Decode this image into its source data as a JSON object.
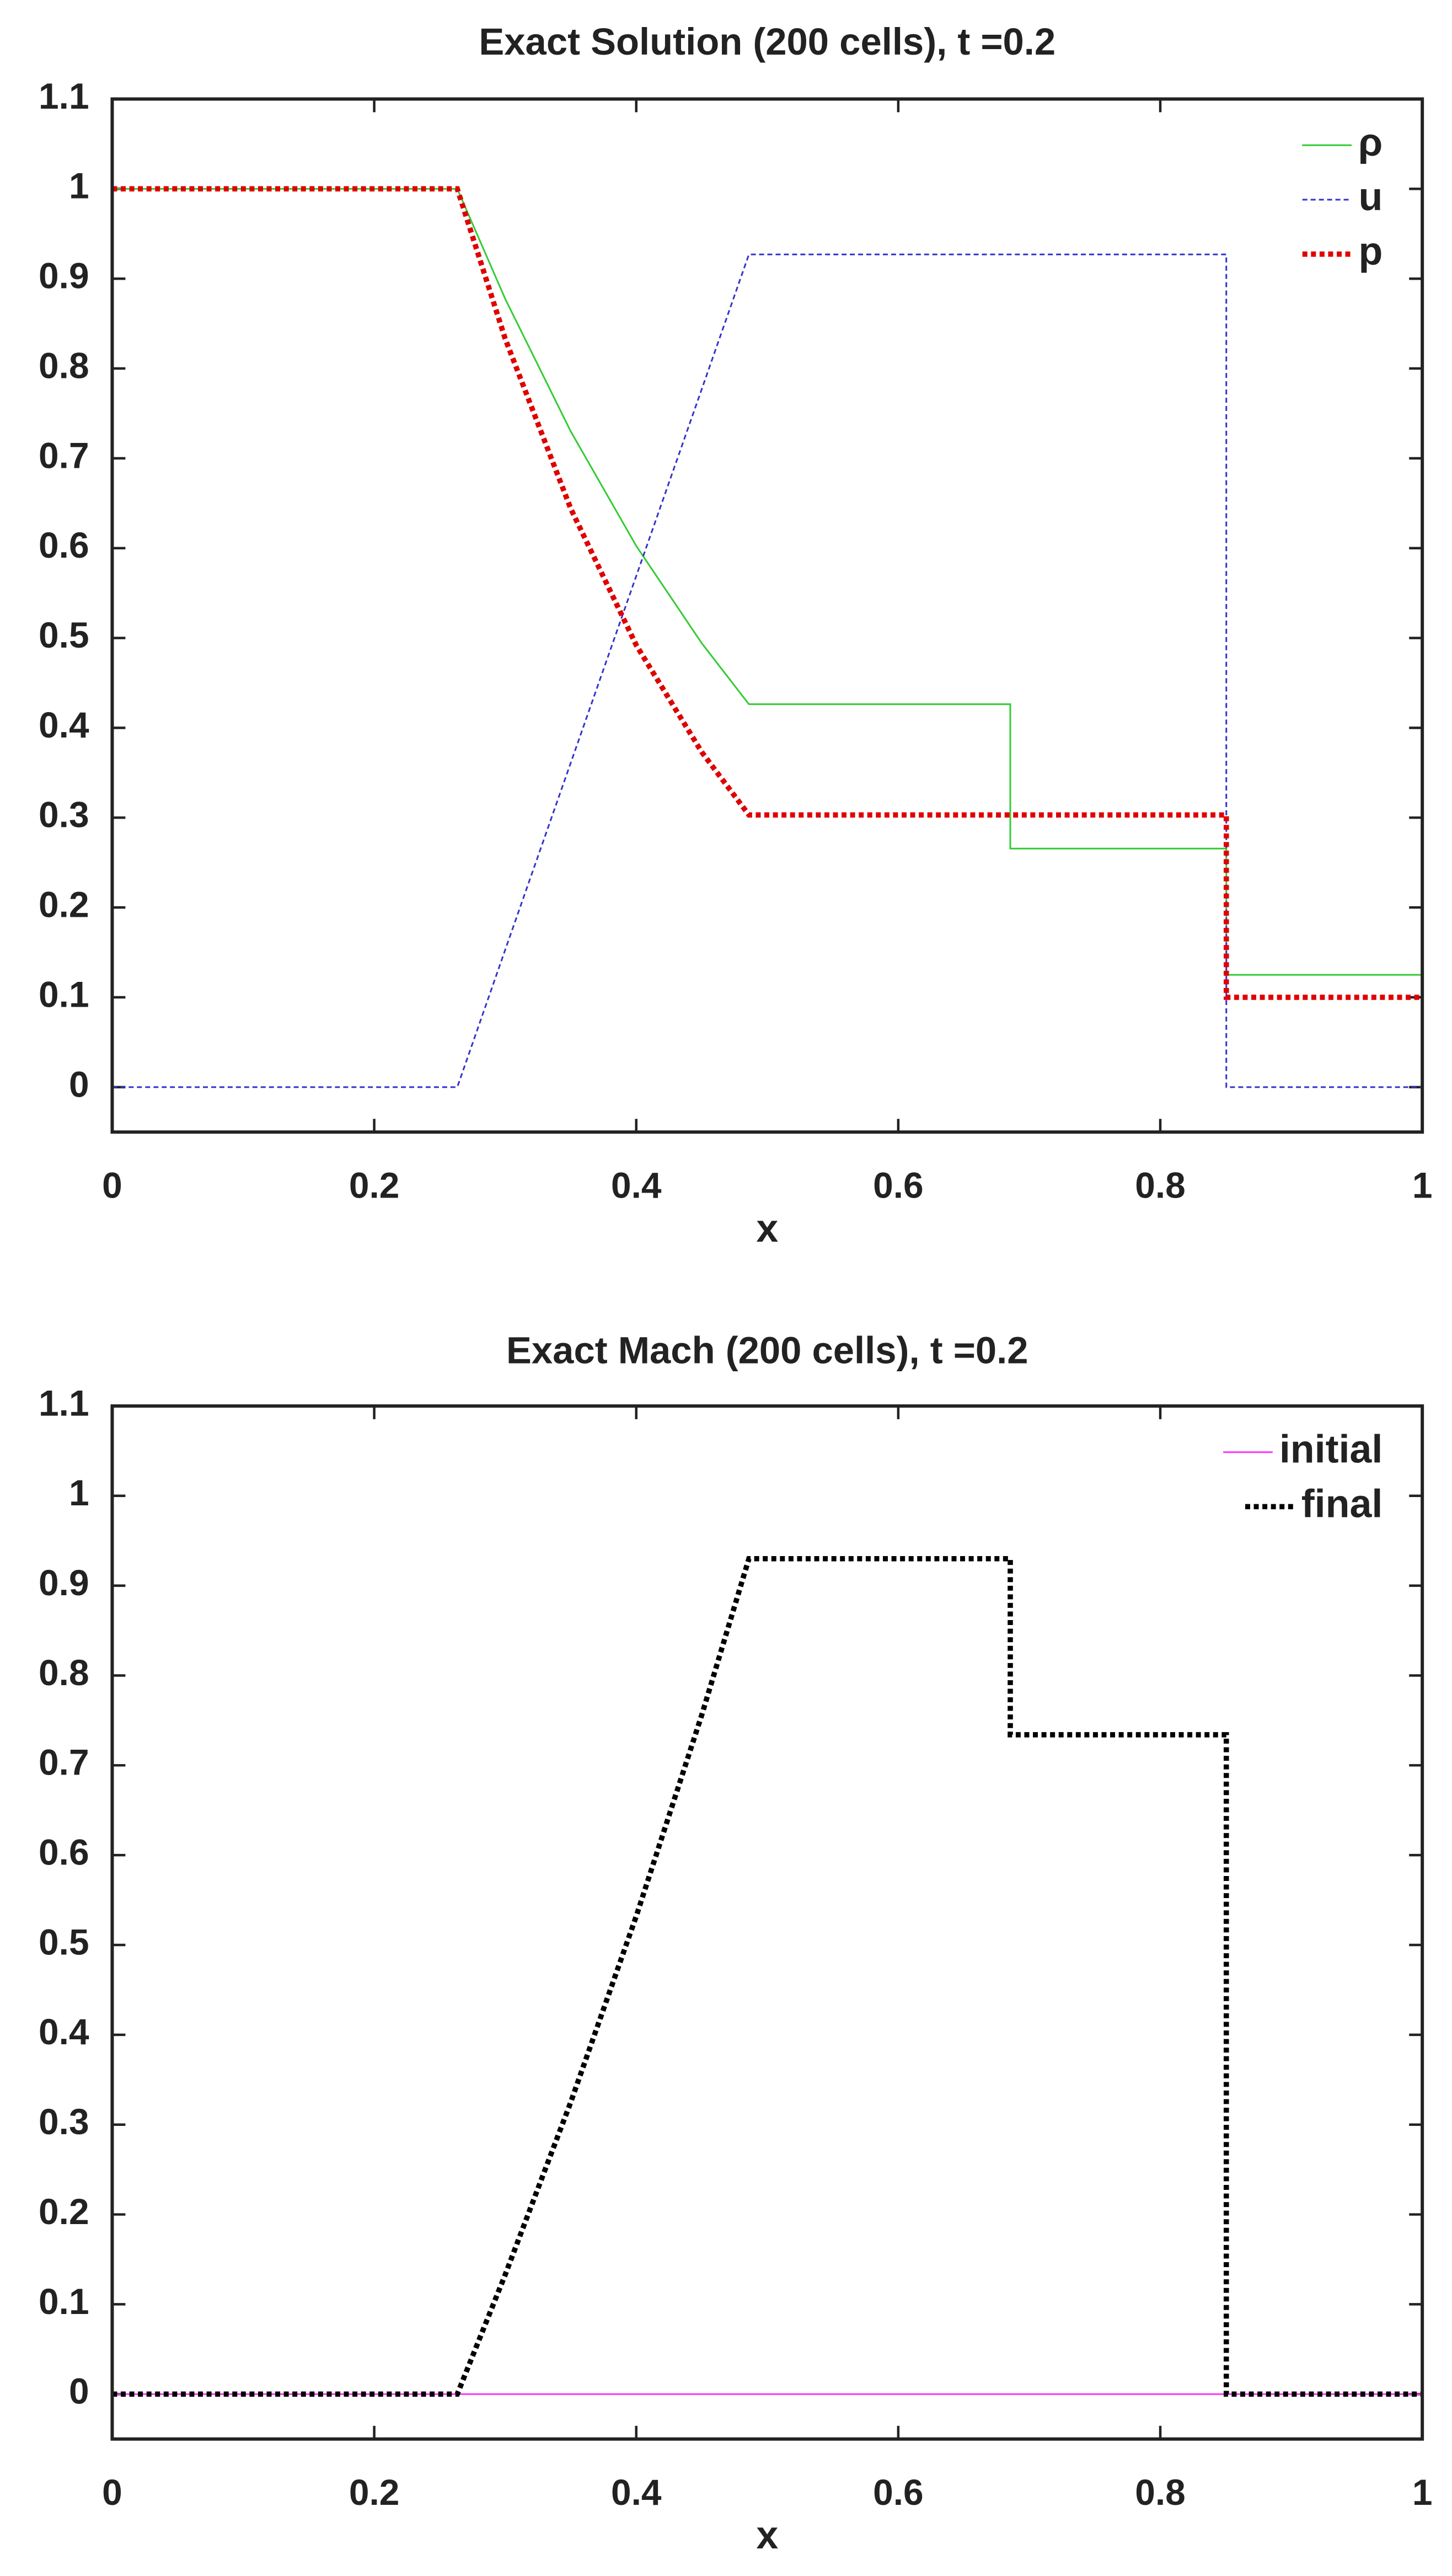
{
  "chart_data": [
    {
      "type": "line",
      "title": "Exact Solution (200 cells), t =0.2",
      "xlabel": "x",
      "x": [
        0,
        0.2634,
        0.3,
        0.35,
        0.4,
        0.45,
        0.486,
        0.6855,
        0.6855,
        0.8504,
        0.8504,
        1
      ],
      "series": [
        {
          "name": "ρ",
          "color": "#33cc33",
          "line_style": "solid",
          "values": [
            1,
            1,
            0.8775,
            0.73,
            0.6025,
            0.4942,
            0.4263,
            0.4263,
            0.2656,
            0.2656,
            0.125,
            0.125
          ]
        },
        {
          "name": "u",
          "color": "#3333cc",
          "line_style": "dashed",
          "values": [
            0,
            0,
            0.153,
            0.361,
            0.569,
            0.777,
            0.927,
            0.927,
            0.927,
            0.927,
            0,
            0
          ]
        },
        {
          "name": "p",
          "color": "#e00000",
          "line_style": "dotted",
          "values": [
            1,
            1,
            0.833,
            0.644,
            0.492,
            0.373,
            0.303,
            0.303,
            0.303,
            0.303,
            0.1,
            0.1
          ]
        }
      ],
      "xlim": [
        0,
        1
      ],
      "ylim": [
        -0.05,
        1.1
      ],
      "xticks": [
        0,
        0.2,
        0.4,
        0.6,
        0.8,
        1
      ],
      "yticks": [
        0,
        0.1,
        0.2,
        0.3,
        0.4,
        0.5,
        0.6,
        0.7,
        0.8,
        0.9,
        1,
        1.1
      ],
      "legend": "upper right"
    },
    {
      "type": "line",
      "title": "Exact Mach (200 cells), t =0.2",
      "xlabel": "x",
      "x": [
        0,
        0.2634,
        0.3,
        0.35,
        0.4,
        0.45,
        0.486,
        0.6855,
        0.6855,
        0.8504,
        0.8504,
        1
      ],
      "series": [
        {
          "name": "initial",
          "color": "#ff33ff",
          "line_style": "solid",
          "values": [
            0,
            0,
            0,
            0,
            0,
            0,
            0,
            0,
            0,
            0,
            0,
            0
          ]
        },
        {
          "name": "final",
          "color": "#000000",
          "line_style": "dotted",
          "values": [
            0,
            0,
            0.133,
            0.325,
            0.532,
            0.756,
            0.93,
            0.93,
            0.734,
            0.734,
            0,
            0
          ]
        }
      ],
      "xlim": [
        0,
        1
      ],
      "ylim": [
        -0.05,
        1.1
      ],
      "xticks": [
        0,
        0.2,
        0.4,
        0.6,
        0.8,
        1
      ],
      "yticks": [
        0,
        0.1,
        0.2,
        0.3,
        0.4,
        0.5,
        0.6,
        0.7,
        0.8,
        0.9,
        1,
        1.1
      ],
      "legend": "upper right"
    }
  ]
}
